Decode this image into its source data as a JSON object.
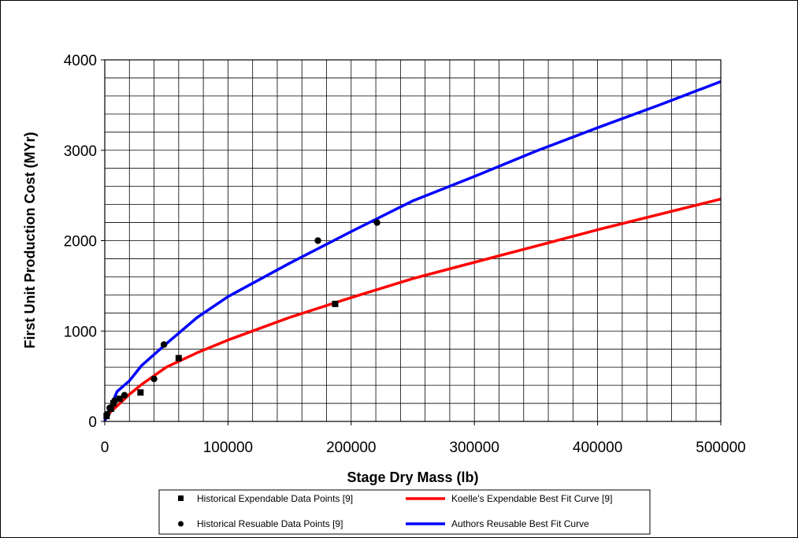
{
  "chart_data": {
    "type": "scatter",
    "xlabel": "Stage Dry Mass (lb)",
    "ylabel": "First Unit Production Cost (MYr)",
    "xlim": [
      0,
      500000
    ],
    "ylim": [
      0,
      4000
    ],
    "x_ticks": [
      "0",
      "100000",
      "200000",
      "300000",
      "400000",
      "500000"
    ],
    "y_ticks": [
      "0",
      "1000",
      "2000",
      "3000",
      "4000"
    ],
    "x_minor_step": 20000,
    "y_minor_step": 200,
    "grid": true,
    "legend_position": "bottom",
    "series": [
      {
        "name": "Historical Expendable Data Points [9]",
        "kind": "points",
        "marker": "square",
        "color": "#000000",
        "points": [
          [
            1500,
            60
          ],
          [
            5000,
            140
          ],
          [
            7000,
            200
          ],
          [
            12000,
            250
          ],
          [
            29000,
            320
          ],
          [
            60000,
            700
          ],
          [
            187000,
            1300
          ]
        ]
      },
      {
        "name": "Historical Resuable Data Points [9]",
        "kind": "points",
        "marker": "circle",
        "color": "#000000",
        "points": [
          [
            2000,
            80
          ],
          [
            4000,
            150
          ],
          [
            8000,
            230
          ],
          [
            16000,
            290
          ],
          [
            40000,
            470
          ],
          [
            48000,
            850
          ],
          [
            173000,
            2000
          ],
          [
            221000,
            2200
          ]
        ]
      },
      {
        "name": "Koelle's Expendable Best Fit Curve [9]",
        "kind": "line",
        "color": "#ff0000",
        "points": [
          [
            0,
            0
          ],
          [
            1000,
            40
          ],
          [
            5000,
            110
          ],
          [
            10000,
            170
          ],
          [
            20000,
            300
          ],
          [
            30000,
            410
          ],
          [
            50000,
            600
          ],
          [
            75000,
            760
          ],
          [
            100000,
            900
          ],
          [
            150000,
            1150
          ],
          [
            200000,
            1370
          ],
          [
            250000,
            1580
          ],
          [
            300000,
            1760
          ],
          [
            350000,
            1940
          ],
          [
            400000,
            2120
          ],
          [
            450000,
            2290
          ],
          [
            500000,
            2460
          ]
        ]
      },
      {
        "name": "Authors Reusable Best Fit Curve",
        "kind": "line",
        "color": "#0000ff",
        "points": [
          [
            0,
            0
          ],
          [
            1000,
            50
          ],
          [
            5000,
            170
          ],
          [
            10000,
            330
          ],
          [
            20000,
            450
          ],
          [
            30000,
            620
          ],
          [
            50000,
            860
          ],
          [
            75000,
            1150
          ],
          [
            100000,
            1380
          ],
          [
            150000,
            1750
          ],
          [
            200000,
            2100
          ],
          [
            250000,
            2440
          ],
          [
            300000,
            2710
          ],
          [
            350000,
            2990
          ],
          [
            400000,
            3250
          ],
          [
            450000,
            3500
          ],
          [
            500000,
            3760
          ]
        ]
      }
    ]
  }
}
